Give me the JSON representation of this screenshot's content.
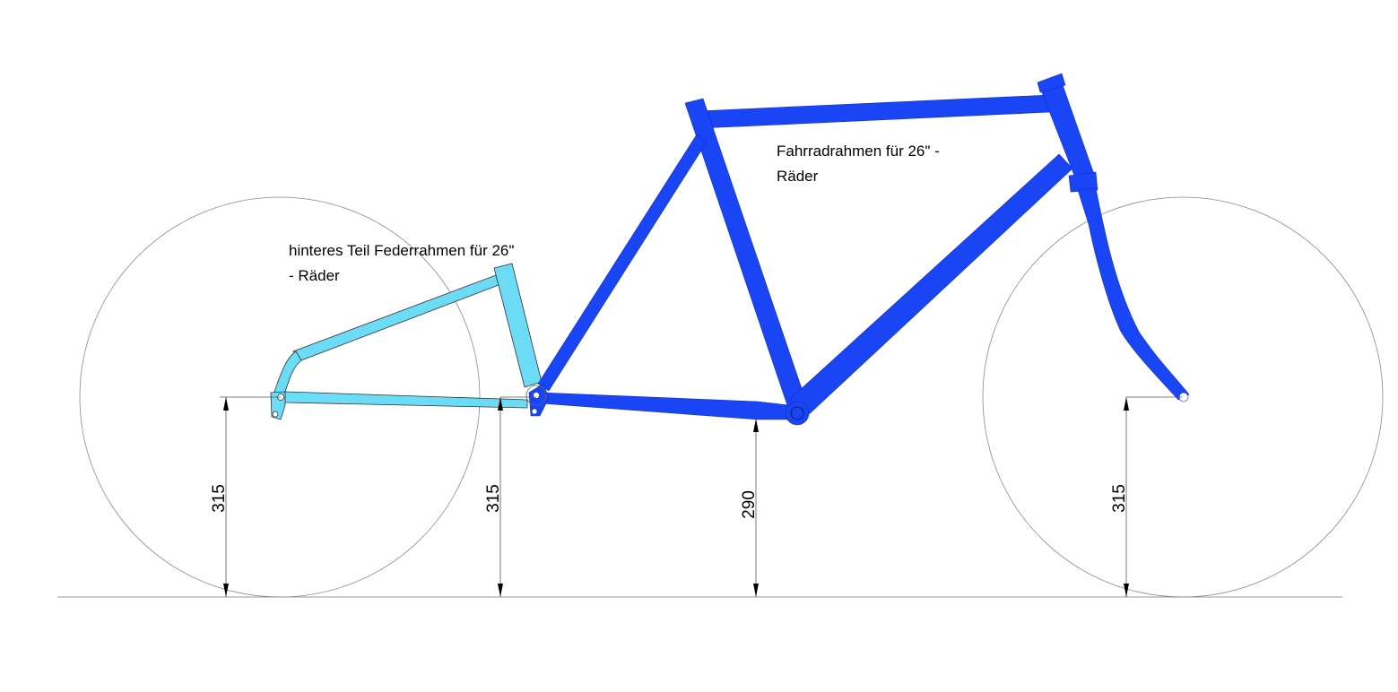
{
  "labels": {
    "rear_part_line1": "hinteres Teil Federrahmen für 26\"",
    "rear_part_line2": "- Räder",
    "main_frame_line1": "Fahrradrahmen für 26\" -",
    "main_frame_line2": "Räder"
  },
  "dimensions": {
    "rear_axle": "315",
    "pivot": "315",
    "bottom_bracket": "290",
    "front_axle": "315"
  },
  "colors": {
    "main_frame": "#1a45f5",
    "rear_part": "#6cdcf6",
    "wheel_outline": "#8a8a8a",
    "dimension_line": "#555555"
  }
}
